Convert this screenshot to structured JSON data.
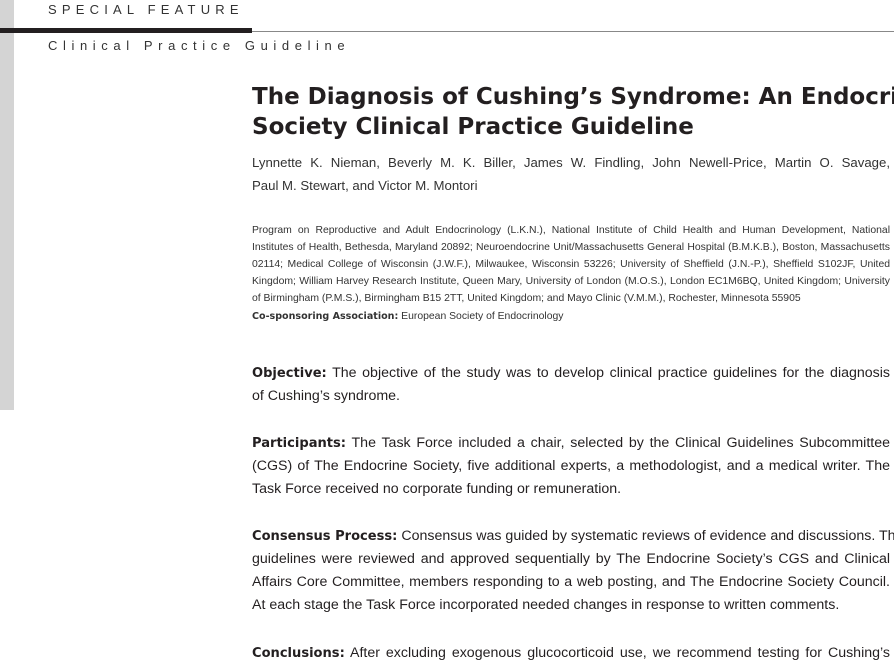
{
  "header": {
    "feature": "SPECIAL FEATURE",
    "section": "Clinical Practice Guideline"
  },
  "title_lines": [
    "The Diagnosis of Cushing’s Syndrome: An Endocrine",
    "Society Clinical Practice Guideline"
  ],
  "authors": [
    "Lynnette K. Nieman, Beverly M. K. Biller, James W. Findling, John Newell-Price, Martin O. Savage,",
    "Paul M. Stewart, and Victor M. Montori"
  ],
  "affiliation": [
    "Program on Reproductive and Adult Endocrinology (L.K.N.), National Institute of Child Health and Human Development, National",
    "Institutes of Health, Bethesda, Maryland 20892; Neuroendocrine Unit/Massachusetts General Hospital (B.M.K.B.), Boston, Massachusetts",
    "02114; Medical College of Wisconsin (J.W.F.), Milwaukee, Wisconsin 53226; University of Sheffield (J.N.-P.), Sheffield S102JF, United",
    "Kingdom; William Harvey Research Institute, Queen Mary, University of London (M.O.S.), London EC1M6BQ, United Kingdom; University",
    "of Birmingham (P.M.S.), Birmingham B15 2TT, United Kingdom; and Mayo Clinic (V.M.M.), Rochester, Minnesota 55905"
  ],
  "cosponsor": {
    "label": "Co-sponsoring Association:",
    "value": " European Society of Endocrinology"
  },
  "abstract": [
    {
      "label": "Objective:",
      "lines": [
        " The objective of the study was to develop clinical practice guidelines for the diagnosis",
        "of Cushing’s syndrome."
      ]
    },
    {
      "label": "Participants:",
      "lines": [
        " The Task Force included a chair, selected by the Clinical Guidelines Subcommittee",
        "(CGS) of The Endocrine Society, five additional experts, a methodologist, and a medical writer. The",
        "Task Force received no corporate funding or remuneration."
      ]
    },
    {
      "label": "Consensus Process:",
      "lines": [
        " Consensus was guided by systematic reviews of evidence and discussions. The",
        "guidelines were reviewed and approved sequentially by The Endocrine Society’s CGS and Clinical",
        "Affairs Core Committee, members responding to a web posting, and The Endocrine Society Council.",
        "At each stage the Task Force incorporated needed changes in response to written comments."
      ]
    },
    {
      "label": "Conclusions:",
      "lines": [
        " After excluding exogenous glucocorticoid use, we recommend testing for Cushing’s"
      ]
    }
  ]
}
